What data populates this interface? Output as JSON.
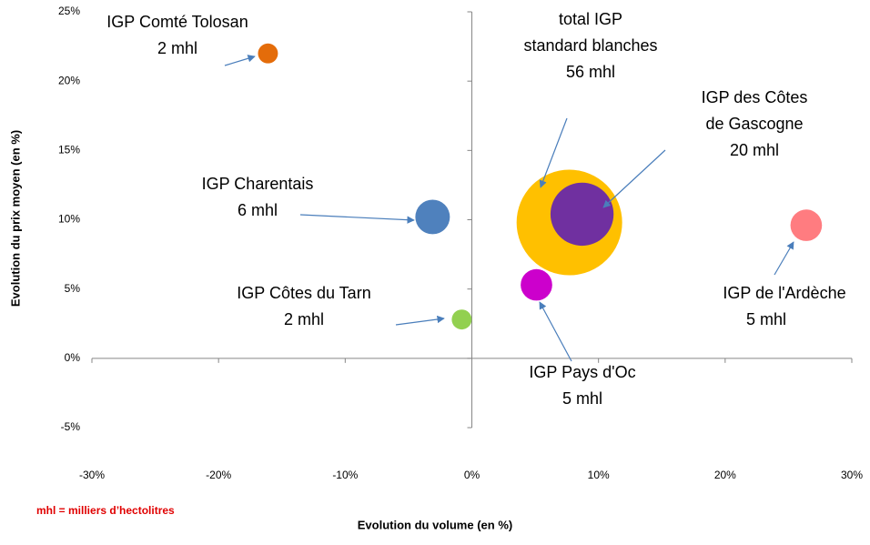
{
  "chart_data": {
    "type": "bubble",
    "xlabel": "Evolution du volume (en %)",
    "ylabel": "Evolution du prix moyen (en %)",
    "note": "mhl = milliers d’hectolitres",
    "xlim": [
      -30,
      30
    ],
    "xticks": [
      {
        "value": -30,
        "label": "-30%"
      },
      {
        "value": -20,
        "label": "-20%"
      },
      {
        "value": -10,
        "label": "-10%"
      },
      {
        "value": 0,
        "label": "0%"
      },
      {
        "value": 10,
        "label": "10%"
      },
      {
        "value": 20,
        "label": "20%"
      },
      {
        "value": 30,
        "label": "30%"
      }
    ],
    "ylim": [
      -5,
      25
    ],
    "yticks": [
      {
        "value": -5,
        "label": "-5%"
      },
      {
        "value": 0,
        "label": "0%"
      },
      {
        "value": 5,
        "label": "5%"
      },
      {
        "value": 10,
        "label": "10%"
      },
      {
        "value": 15,
        "label": "15%"
      },
      {
        "value": 20,
        "label": "20%"
      },
      {
        "value": 25,
        "label": "25%"
      }
    ],
    "points": [
      {
        "name": [
          "IGP Comté Tolosan"
        ],
        "x": -16.1,
        "y": 22.0,
        "size": 2,
        "size_label": "2 mhl",
        "color": "#e46c0a"
      },
      {
        "name": [
          "IGP Charentais"
        ],
        "x": -3.1,
        "y": 10.2,
        "size": 6,
        "size_label": "6 mhl",
        "color": "#4f81bd"
      },
      {
        "name": [
          "IGP Côtes du Tarn"
        ],
        "x": -0.8,
        "y": 2.8,
        "size": 2,
        "size_label": "2 mhl",
        "color": "#92d050"
      },
      {
        "name": [
          "IGP Pays d'Oc"
        ],
        "x": 5.1,
        "y": 5.3,
        "size": 5,
        "size_label": "5 mhl",
        "color": "#cc00cc"
      },
      {
        "name": [
          "total IGP",
          "standard blanches"
        ],
        "x": 7.7,
        "y": 9.8,
        "size": 56,
        "size_label": "56 mhl",
        "color": "#ffc000"
      },
      {
        "name": [
          "IGP des Côtes",
          "de Gascogne"
        ],
        "x": 8.7,
        "y": 10.4,
        "size": 20,
        "size_label": "20 mhl",
        "color": "#7030a0"
      },
      {
        "name": [
          "IGP de l'Ardèche"
        ],
        "x": 26.4,
        "y": 9.6,
        "size": 5,
        "size_label": "5 mhl",
        "color": "#ff7c80"
      }
    ]
  }
}
